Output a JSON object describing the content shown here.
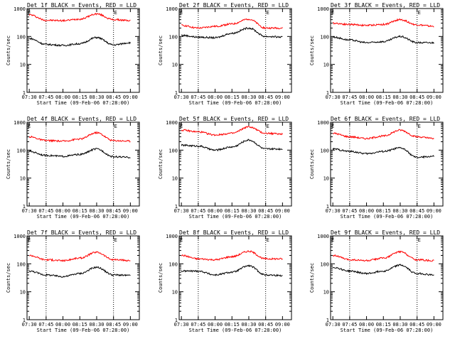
{
  "chart_data": [
    {
      "type": "line",
      "title": "Det 1f BLACK = Events, RED = LLD",
      "xlabel": "Start Time (09-Feb-06 07:28:00)",
      "ylabel": "Counts/sec",
      "ylim": [
        1,
        1000
      ],
      "yscale": "log",
      "xticks": [
        "07:30",
        "07:45",
        "08:00",
        "08:15",
        "08:30",
        "08:45",
        "09:00"
      ],
      "yticks": [
        "1",
        "10",
        "100",
        "1000"
      ],
      "markers": [
        "E",
        "E"
      ],
      "grid": "dotted vertical lines near 07:45 and 08:45",
      "series": [
        {
          "color": "#ff0000",
          "x": [
            "07:30",
            "07:45",
            "08:00",
            "08:15",
            "08:30",
            "08:45",
            "09:00"
          ],
          "values": [
            600,
            380,
            370,
            420,
            640,
            400,
            370
          ]
        },
        {
          "color": "#000000",
          "x": [
            "07:30",
            "07:45",
            "08:00",
            "08:15",
            "08:30",
            "08:45",
            "09:00"
          ],
          "values": [
            85,
            52,
            48,
            55,
            92,
            50,
            60
          ]
        }
      ]
    },
    {
      "type": "line",
      "title": "Det 2f BLACK = Events, RED = LLD",
      "xlabel": "Start Time (09-Feb-06 07:28:00)",
      "ylabel": "Counts/sec",
      "ylim": [
        1,
        1000
      ],
      "yscale": "log",
      "xticks": [
        "07:30",
        "07:45",
        "08:00",
        "08:15",
        "08:30",
        "08:45",
        "09:00"
      ],
      "yticks": [
        "1",
        "10",
        "100",
        "1000"
      ],
      "markers": [
        "E",
        "E"
      ],
      "grid": "dotted vertical lines near 07:45 and 08:45",
      "series": [
        {
          "color": "#ff0000",
          "x": [
            "07:30",
            "07:45",
            "08:00",
            "08:15",
            "08:30",
            "08:45",
            "09:00"
          ],
          "values": [
            250,
            200,
            230,
            280,
            420,
            200,
            200
          ]
        },
        {
          "color": "#000000",
          "x": [
            "07:30",
            "07:45",
            "08:00",
            "08:15",
            "08:30",
            "08:45",
            "09:00"
          ],
          "values": [
            110,
            95,
            90,
            130,
            200,
            100,
            95
          ]
        }
      ]
    },
    {
      "type": "line",
      "title": "Det 3f BLACK = Events, RED = LLD",
      "xlabel": "Start Time (09-Feb-06 07:28:00)",
      "ylabel": "Counts/sec",
      "ylim": [
        1,
        1000
      ],
      "yscale": "log",
      "xticks": [
        "07:30",
        "07:45",
        "08:00",
        "08:15",
        "08:30",
        "08:45",
        "09:00"
      ],
      "yticks": [
        "1",
        "10",
        "100",
        "1000"
      ],
      "markers": [
        "E",
        "E"
      ],
      "grid": "dotted vertical lines near 07:45 and 08:45",
      "series": [
        {
          "color": "#ff0000",
          "x": [
            "07:30",
            "07:45",
            "08:00",
            "08:15",
            "08:30",
            "08:45",
            "09:00"
          ],
          "values": [
            300,
            270,
            250,
            270,
            400,
            260,
            230
          ]
        },
        {
          "color": "#000000",
          "x": [
            "07:30",
            "07:45",
            "08:00",
            "08:15",
            "08:30",
            "08:45",
            "09:00"
          ],
          "values": [
            95,
            75,
            60,
            65,
            100,
            60,
            60
          ]
        }
      ]
    },
    {
      "type": "line",
      "title": "Det 4f BLACK = Events, RED = LLD",
      "xlabel": "Start Time (09-Feb-06 07:28:00)",
      "ylabel": "Counts/sec",
      "ylim": [
        1,
        1000
      ],
      "yscale": "log",
      "xticks": [
        "07:30",
        "07:45",
        "08:00",
        "08:15",
        "08:30",
        "08:45",
        "09:00"
      ],
      "yticks": [
        "1",
        "10",
        "100",
        "1000"
      ],
      "markers": [
        "E",
        "E"
      ],
      "grid": "dotted vertical lines near 07:45 and 08:45",
      "series": [
        {
          "color": "#ff0000",
          "x": [
            "07:30",
            "07:45",
            "08:00",
            "08:15",
            "08:30",
            "08:45",
            "09:00"
          ],
          "values": [
            300,
            220,
            210,
            250,
            420,
            220,
            210
          ]
        },
        {
          "color": "#000000",
          "x": [
            "07:30",
            "07:45",
            "08:00",
            "08:15",
            "08:30",
            "08:45",
            "09:00"
          ],
          "values": [
            90,
            65,
            60,
            70,
            110,
            58,
            55
          ]
        }
      ]
    },
    {
      "type": "line",
      "title": "Det 5f BLACK = Events, RED = LLD",
      "xlabel": "Start Time (09-Feb-06 07:28:00)",
      "ylabel": "Counts/sec",
      "ylim": [
        1,
        1000
      ],
      "yscale": "log",
      "xticks": [
        "07:30",
        "07:45",
        "08:00",
        "08:15",
        "08:30",
        "08:45",
        "09:00"
      ],
      "yticks": [
        "1",
        "10",
        "100",
        "1000"
      ],
      "markers": [
        "E",
        "E"
      ],
      "grid": "dotted vertical lines near 07:45 and 08:45",
      "series": [
        {
          "color": "#ff0000",
          "x": [
            "07:30",
            "07:45",
            "08:00",
            "08:15",
            "08:30",
            "08:45",
            "09:00"
          ],
          "values": [
            520,
            450,
            350,
            400,
            680,
            400,
            380
          ]
        },
        {
          "color": "#000000",
          "x": [
            "07:30",
            "07:45",
            "08:00",
            "08:15",
            "08:30",
            "08:45",
            "09:00"
          ],
          "values": [
            150,
            140,
            100,
            130,
            230,
            110,
            110
          ]
        }
      ]
    },
    {
      "type": "line",
      "title": "Det 6f BLACK = Events, RED = LLD",
      "xlabel": "Start Time (09-Feb-06 07:28:00)",
      "ylabel": "Counts/sec",
      "ylim": [
        1,
        1000
      ],
      "yscale": "log",
      "xticks": [
        "07:30",
        "07:45",
        "08:00",
        "08:15",
        "08:30",
        "08:45",
        "09:00"
      ],
      "yticks": [
        "1",
        "10",
        "100",
        "1000"
      ],
      "markers": [
        "E",
        "E"
      ],
      "grid": "dotted vertical lines near 07:45 and 08:45",
      "series": [
        {
          "color": "#ff0000",
          "x": [
            "07:30",
            "07:45",
            "08:00",
            "08:15",
            "08:30",
            "08:45",
            "09:00"
          ],
          "values": [
            400,
            300,
            260,
            320,
            520,
            300,
            260
          ]
        },
        {
          "color": "#000000",
          "x": [
            "07:30",
            "07:45",
            "08:00",
            "08:15",
            "08:30",
            "08:45",
            "09:00"
          ],
          "values": [
            110,
            90,
            75,
            90,
            120,
            55,
            60
          ]
        }
      ]
    },
    {
      "type": "line",
      "title": "Det 7f BLACK = Events, RED = LLD",
      "xlabel": "Start Time (09-Feb-06 07:28:00)",
      "ylabel": "Counts/sec",
      "ylim": [
        1,
        1000
      ],
      "yscale": "log",
      "xticks": [
        "07:30",
        "07:45",
        "08:00",
        "08:15",
        "08:30",
        "08:45",
        "09:00"
      ],
      "yticks": [
        "1",
        "10",
        "100",
        "1000"
      ],
      "markers": [
        "E",
        "E"
      ],
      "grid": "dotted vertical lines near 07:45 and 08:45",
      "series": [
        {
          "color": "#ff0000",
          "x": [
            "07:30",
            "07:45",
            "08:00",
            "08:15",
            "08:30",
            "08:45",
            "09:00"
          ],
          "values": [
            200,
            140,
            130,
            160,
            260,
            140,
            130
          ]
        },
        {
          "color": "#000000",
          "x": [
            "07:30",
            "07:45",
            "08:00",
            "08:15",
            "08:30",
            "08:45",
            "09:00"
          ],
          "values": [
            55,
            40,
            35,
            45,
            75,
            40,
            38
          ]
        }
      ]
    },
    {
      "type": "line",
      "title": "Det 8f BLACK = Events, RED = LLD",
      "xlabel": "Start Time (09-Feb-06 07:28:00)",
      "ylabel": "Counts/sec",
      "ylim": [
        1,
        1000
      ],
      "yscale": "log",
      "xticks": [
        "07:30",
        "07:45",
        "08:00",
        "08:15",
        "08:30",
        "08:45",
        "09:00"
      ],
      "yticks": [
        "1",
        "10",
        "100",
        "1000"
      ],
      "markers": [
        "E",
        "E"
      ],
      "grid": "dotted vertical lines near 07:45 and 08:45",
      "series": [
        {
          "color": "#ff0000",
          "x": [
            "07:30",
            "07:45",
            "08:00",
            "08:15",
            "08:30",
            "08:45",
            "09:00"
          ],
          "values": [
            200,
            150,
            140,
            180,
            280,
            150,
            150
          ]
        },
        {
          "color": "#000000",
          "x": [
            "07:30",
            "07:45",
            "08:00",
            "08:15",
            "08:30",
            "08:45",
            "09:00"
          ],
          "values": [
            55,
            55,
            40,
            50,
            85,
            40,
            38
          ]
        }
      ]
    },
    {
      "type": "line",
      "title": "Det 9f BLACK = Events, RED = LLD",
      "xlabel": "Start Time (09-Feb-06 07:28:00)",
      "ylabel": "Counts/sec",
      "ylim": [
        1,
        1000
      ],
      "yscale": "log",
      "xticks": [
        "07:30",
        "07:45",
        "08:00",
        "08:15",
        "08:30",
        "08:45",
        "09:00"
      ],
      "yticks": [
        "1",
        "10",
        "100",
        "1000"
      ],
      "markers": [
        "E",
        "E"
      ],
      "grid": "dotted vertical lines near 07:45 and 08:45",
      "series": [
        {
          "color": "#ff0000",
          "x": [
            "07:30",
            "07:45",
            "08:00",
            "08:15",
            "08:30",
            "08:45",
            "09:00"
          ],
          "values": [
            200,
            140,
            130,
            160,
            270,
            140,
            130
          ]
        },
        {
          "color": "#000000",
          "x": [
            "07:30",
            "07:45",
            "08:00",
            "08:15",
            "08:30",
            "08:45",
            "09:00"
          ],
          "values": [
            75,
            55,
            45,
            55,
            90,
            45,
            40
          ]
        }
      ]
    }
  ]
}
